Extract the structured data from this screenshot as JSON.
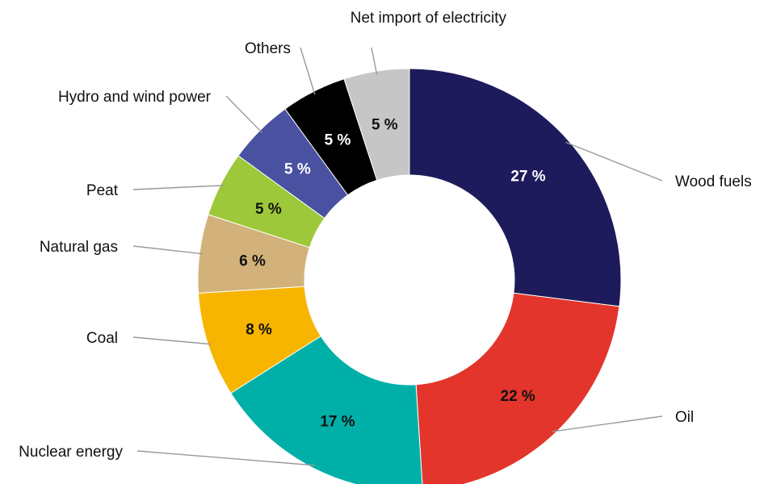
{
  "chart_data": {
    "type": "pie",
    "variant": "donut",
    "title": "",
    "unit": "%",
    "slices": [
      {
        "label": "Wood fuels",
        "value": 27,
        "display": "27 %",
        "color": "#1e1b5c",
        "text_color": "#ffffff"
      },
      {
        "label": "Oil",
        "value": 22,
        "display": "22 %",
        "color": "#e3352b",
        "text_color": "#111111"
      },
      {
        "label": "Nuclear energy",
        "value": 17,
        "display": "17 %",
        "color": "#00b0a8",
        "text_color": "#111111"
      },
      {
        "label": "Coal",
        "value": 8,
        "display": "8 %",
        "color": "#f7b500",
        "text_color": "#111111"
      },
      {
        "label": "Natural gas",
        "value": 6,
        "display": "6 %",
        "color": "#d2b27a",
        "text_color": "#111111"
      },
      {
        "label": "Peat",
        "value": 5,
        "display": "5 %",
        "color": "#9dc83a",
        "text_color": "#111111"
      },
      {
        "label": "Hydro and wind power",
        "value": 5,
        "display": "5 %",
        "color": "#4a51a1",
        "text_color": "#ffffff"
      },
      {
        "label": "Others",
        "value": 5,
        "display": "5 %",
        "color": "#000000",
        "text_color": "#ffffff"
      },
      {
        "label": "Net import of electricity",
        "value": 5,
        "display": "5 %",
        "color": "#c6c6c6",
        "text_color": "#111111"
      }
    ]
  }
}
